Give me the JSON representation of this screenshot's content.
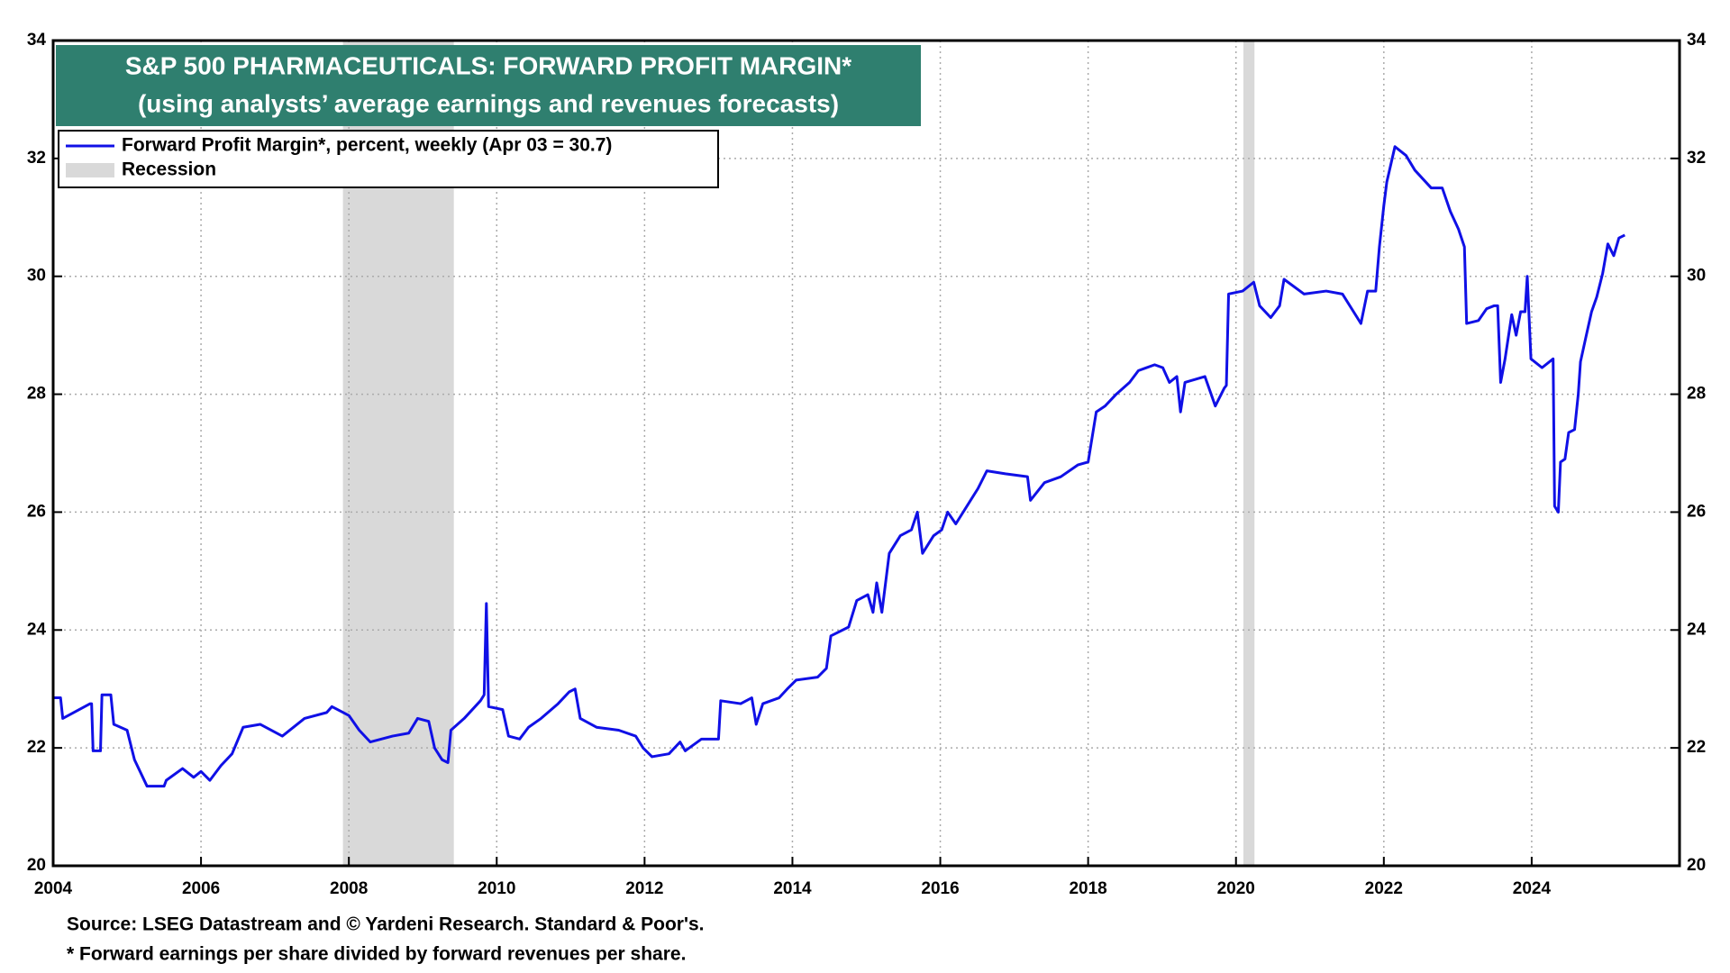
{
  "chart_data": {
    "type": "line",
    "title": "S&P 500 PHARMACEUTICALS: FORWARD PROFIT MARGIN*",
    "subtitle": "(using analysts’ average earnings and revenues forecasts)",
    "source": "Source: LSEG Datastream and © Yardeni Research. Standard & Poor's.",
    "footnote": "* Forward earnings per share divided by forward revenues per share.",
    "xlim": [
      2004,
      2026
    ],
    "xticks": [
      2004,
      2006,
      2008,
      2010,
      2012,
      2014,
      2016,
      2018,
      2020,
      2022,
      2024
    ],
    "ylim": [
      20,
      34
    ],
    "yticks": [
      20,
      22,
      24,
      26,
      28,
      30,
      32,
      34
    ],
    "grid": true,
    "legend": "top-left",
    "recession": {
      "name": "Recession",
      "color": "#d9d9d9",
      "periods": [
        [
          2007.92,
          2009.42
        ],
        [
          2020.1,
          2020.25
        ]
      ]
    },
    "series": [
      {
        "name": "Forward Profit Margin*, percent, weekly (Apr 03 = 30.7)",
        "color": "#1010e6",
        "x": [
          2004.0,
          2004.1,
          2004.13,
          2004.5,
          2004.52,
          2004.54,
          2004.64,
          2004.66,
          2004.78,
          2004.82,
          2005.0,
          2005.1,
          2005.27,
          2005.5,
          2005.53,
          2005.75,
          2005.9,
          2006.0,
          2006.12,
          2006.27,
          2006.42,
          2006.57,
          2006.8,
          2007.1,
          2007.4,
          2007.7,
          2007.77,
          2008.0,
          2008.14,
          2008.29,
          2008.59,
          2008.81,
          2008.93,
          2009.08,
          2009.16,
          2009.26,
          2009.34,
          2009.38,
          2009.56,
          2009.78,
          2009.83,
          2009.86,
          2009.89,
          2010.08,
          2010.16,
          2010.31,
          2010.43,
          2010.6,
          2010.83,
          2010.98,
          2011.06,
          2011.13,
          2011.35,
          2011.65,
          2011.88,
          2011.98,
          2012.1,
          2012.33,
          2012.48,
          2012.55,
          2012.77,
          2013.0,
          2013.03,
          2013.3,
          2013.45,
          2013.51,
          2013.6,
          2013.82,
          2013.93,
          2014.05,
          2014.34,
          2014.46,
          2014.52,
          2014.76,
          2014.87,
          2015.02,
          2015.09,
          2015.14,
          2015.21,
          2015.31,
          2015.46,
          2015.61,
          2015.69,
          2015.76,
          2015.91,
          2016.02,
          2016.1,
          2016.21,
          2016.41,
          2016.51,
          2016.63,
          2016.88,
          2017.18,
          2017.22,
          2017.41,
          2017.63,
          2017.86,
          2018.0,
          2018.11,
          2018.23,
          2018.38,
          2018.56,
          2018.68,
          2018.9,
          2019.01,
          2019.1,
          2019.2,
          2019.25,
          2019.31,
          2019.58,
          2019.72,
          2019.84,
          2019.87,
          2019.9,
          2020.09,
          2020.24,
          2020.32,
          2020.47,
          2020.59,
          2020.65,
          2020.92,
          2021.22,
          2021.44,
          2021.64,
          2021.69,
          2021.78,
          2021.89,
          2021.94,
          2022.0,
          2022.04,
          2022.15,
          2022.3,
          2022.42,
          2022.64,
          2022.79,
          2022.9,
          2023.01,
          2023.09,
          2023.12,
          2023.28,
          2023.39,
          2023.49,
          2023.54,
          2023.58,
          2023.64,
          2023.73,
          2023.79,
          2023.85,
          2023.91,
          2023.94,
          2023.99,
          2024.14,
          2024.29,
          2024.31,
          2024.36,
          2024.39,
          2024.45,
          2024.5,
          2024.58,
          2024.63,
          2024.66,
          2024.73,
          2024.81,
          2024.88,
          2024.96,
          2025.03,
          2025.11,
          2025.18,
          2025.26
        ],
        "values": [
          22.85,
          22.85,
          22.5,
          22.75,
          22.75,
          21.95,
          21.95,
          22.9,
          22.9,
          22.4,
          22.3,
          21.8,
          21.35,
          21.35,
          21.45,
          21.65,
          21.5,
          21.6,
          21.45,
          21.7,
          21.9,
          22.35,
          22.4,
          22.2,
          22.5,
          22.6,
          22.7,
          22.55,
          22.3,
          22.1,
          22.2,
          22.25,
          22.5,
          22.45,
          22.0,
          21.8,
          21.75,
          22.3,
          22.5,
          22.8,
          22.9,
          24.45,
          22.7,
          22.65,
          22.2,
          22.15,
          22.35,
          22.5,
          22.75,
          22.95,
          23.0,
          22.5,
          22.35,
          22.3,
          22.2,
          22.0,
          21.85,
          21.9,
          22.1,
          21.95,
          22.15,
          22.15,
          22.8,
          22.75,
          22.85,
          22.4,
          22.75,
          22.85,
          23.0,
          23.15,
          23.2,
          23.35,
          23.9,
          24.05,
          24.5,
          24.6,
          24.3,
          24.8,
          24.3,
          25.3,
          25.6,
          25.7,
          26.0,
          25.3,
          25.6,
          25.7,
          26.0,
          25.8,
          26.2,
          26.4,
          26.7,
          26.65,
          26.6,
          26.2,
          26.5,
          26.6,
          26.8,
          26.85,
          27.7,
          27.8,
          28.0,
          28.2,
          28.4,
          28.5,
          28.45,
          28.2,
          28.3,
          27.7,
          28.2,
          28.3,
          27.8,
          28.1,
          28.15,
          29.7,
          29.75,
          29.9,
          29.5,
          29.3,
          29.5,
          29.95,
          29.7,
          29.75,
          29.7,
          29.3,
          29.2,
          29.75,
          29.75,
          30.5,
          31.2,
          31.6,
          32.2,
          32.05,
          31.8,
          31.5,
          31.5,
          31.1,
          30.8,
          30.5,
          29.2,
          29.25,
          29.45,
          29.5,
          29.5,
          28.2,
          28.6,
          29.35,
          29.0,
          29.4,
          29.4,
          30.0,
          28.6,
          28.45,
          28.6,
          26.1,
          26.0,
          26.85,
          26.9,
          27.35,
          27.4,
          28.0,
          28.55,
          28.95,
          29.4,
          29.65,
          30.05,
          30.55,
          30.35,
          30.65,
          30.7
        ]
      }
    ]
  }
}
